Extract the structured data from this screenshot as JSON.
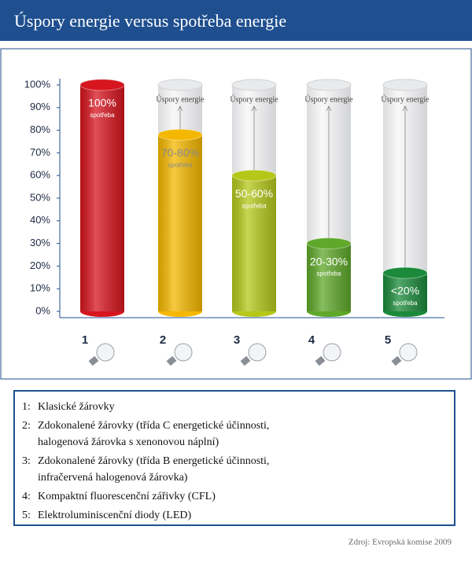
{
  "chart_data": {
    "type": "bar",
    "title": "Úspory energie versus spotřeba energie",
    "categories": [
      "1",
      "2",
      "3",
      "4",
      "5"
    ],
    "values": [
      100,
      78,
      60,
      30,
      17
    ],
    "value_labels": [
      "100%",
      "70-80%",
      "50-60%",
      "20-30%",
      "<20%"
    ],
    "colors": [
      "#d7151f",
      "#f5b800",
      "#b5c81a",
      "#5fa82a",
      "#1b8a3a"
    ],
    "consumption_label": "spotřeba",
    "savings_label": "Úspory energie",
    "ylim": [
      0,
      100
    ],
    "yticks": [
      {
        "value": 0,
        "label": "0%"
      },
      {
        "value": 10,
        "label": "10%"
      },
      {
        "value": 20,
        "label": "20%"
      },
      {
        "value": 30,
        "label": "30%"
      },
      {
        "value": 40,
        "label": "40%"
      },
      {
        "value": 50,
        "label": "50%"
      },
      {
        "value": 60,
        "label": "60%"
      },
      {
        "value": 70,
        "label": "70%"
      },
      {
        "value": 80,
        "label": "80%"
      },
      {
        "value": 90,
        "label": "90%"
      },
      {
        "value": 100,
        "label": "100%"
      }
    ]
  },
  "legend": {
    "items": [
      {
        "key": "1:",
        "lines": [
          "Klasické žárovky"
        ]
      },
      {
        "key": "2:",
        "lines": [
          "Zdokonalené žárovky (třída C energetické účinnosti,",
          "halogenová žárovka s xenonovou náplní)"
        ]
      },
      {
        "key": "3:",
        "lines": [
          "Zdokonalené žárovky (třída B energetické účinnosti,",
          "infračervená halogenová žárovka)"
        ]
      },
      {
        "key": "4:",
        "lines": [
          "Kompaktní fluorescenční zářivky (CFL)"
        ]
      },
      {
        "key": "5:",
        "lines": [
          "Elektroluminiscenční diody (LED)"
        ]
      }
    ]
  },
  "source": "Zdroj: Evropská komise 2009"
}
